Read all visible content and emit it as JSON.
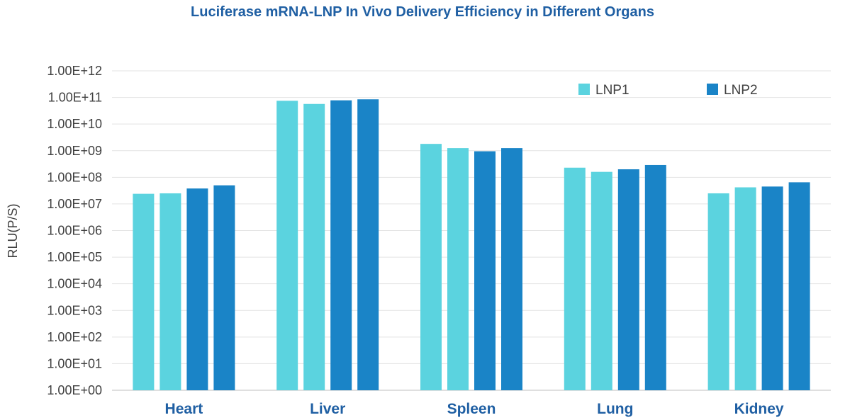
{
  "chart_data": {
    "type": "bar",
    "title": "Luciferase mRNA-LNP In Vivo Delivery Efficiency in Different Organs",
    "xlabel": "",
    "ylabel": "RLU(P/S)",
    "yscale": "log",
    "ylim": [
      1,
      1000000000000
    ],
    "yticks": [
      "1.00E+00",
      "1.00E+01",
      "1.00E+02",
      "1.00E+03",
      "1.00E+04",
      "1.00E+05",
      "1.00E+06",
      "1.00E+07",
      "1.00E+08",
      "1.00E+09",
      "1.00E+10",
      "1.00E+11",
      "1.00E+12"
    ],
    "categories": [
      "Heart",
      "Liver",
      "Spleen",
      "Lung",
      "Kidney"
    ],
    "grid": true,
    "legend_position": "top-right",
    "legend": [
      {
        "name": "LNP1",
        "color": "#5bd3df"
      },
      {
        "name": "LNP2",
        "color": "#1a84c7"
      }
    ],
    "bars": [
      {
        "label": "LNP1",
        "color": "#5bd3df",
        "values": [
          24000000,
          75000000000,
          1800000000,
          230000000,
          25000000
        ]
      },
      {
        "label": "LNP1",
        "color": "#5bd3df",
        "values": [
          25000000,
          57000000000,
          1250000000,
          160000000,
          42000000
        ]
      },
      {
        "label": "LNP2",
        "color": "#1a84c7",
        "values": [
          38000000,
          78000000000,
          950000000,
          200000000,
          45000000
        ]
      },
      {
        "label": "LNP2",
        "color": "#1a84c7",
        "values": [
          50000000,
          85000000000,
          1250000000,
          290000000,
          65000000
        ]
      }
    ]
  }
}
